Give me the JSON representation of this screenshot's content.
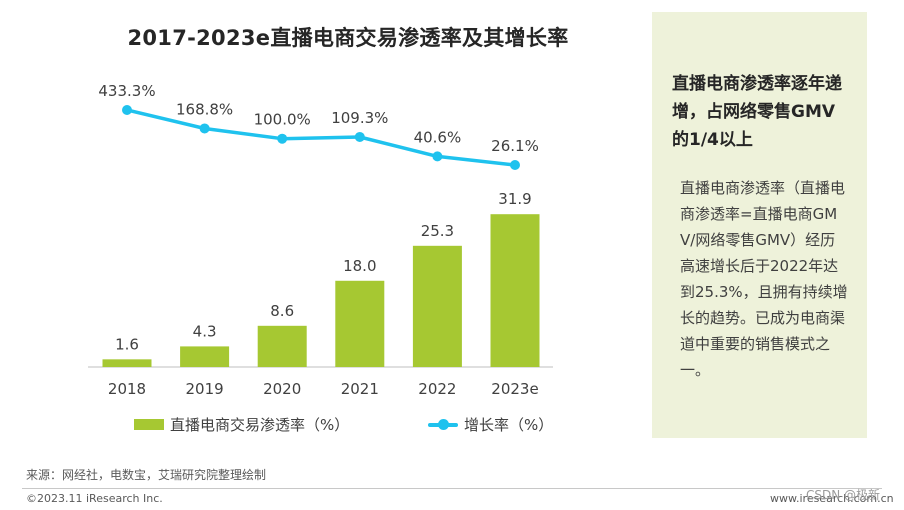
{
  "page": {
    "title": "2017-2023e直播电商交易渗透率及其增长率",
    "source": "来源：网经社，电数宝，艾瑞研究院整理绘制",
    "copyright": "©2023.11 iResearch Inc.",
    "site": "www.iresearch.com.cn",
    "watermark": "CSDN @极新"
  },
  "sidebar": {
    "heading": "直播电商渗透率逐年递增，占网络零售GMV的1/4以上",
    "body": "直播电商渗透率（直播电商渗透率=直播电商GMV/网络零售GMV）经历高速增长后于2022年达到25.3%，且拥有持续增长的趋势。已成为电商渠道中重要的销售模式之一。"
  },
  "colors": {
    "bar": "#a6c832",
    "line": "#1fc2ee",
    "axis": "#bfbfbf",
    "sidebar_bg": "#eef2da"
  },
  "chart_data": {
    "type": "bar",
    "categories": [
      "2018",
      "2019",
      "2020",
      "2021",
      "2022",
      "2023e"
    ],
    "series": [
      {
        "name": "直播电商交易渗透率（%）",
        "type": "bar",
        "values": [
          1.6,
          4.3,
          8.6,
          18.0,
          25.3,
          31.9
        ],
        "labels": [
          "1.6",
          "4.3",
          "8.6",
          "18.0",
          "25.3",
          "31.9"
        ]
      },
      {
        "name": "增长率（%）",
        "type": "line",
        "values": [
          433.3,
          168.8,
          100.0,
          109.3,
          40.6,
          26.1
        ],
        "labels": [
          "433.3%",
          "168.8%",
          "100.0%",
          "109.3%",
          "40.6%",
          "26.1%"
        ]
      }
    ],
    "legend_position": "bottom",
    "grid": false
  }
}
